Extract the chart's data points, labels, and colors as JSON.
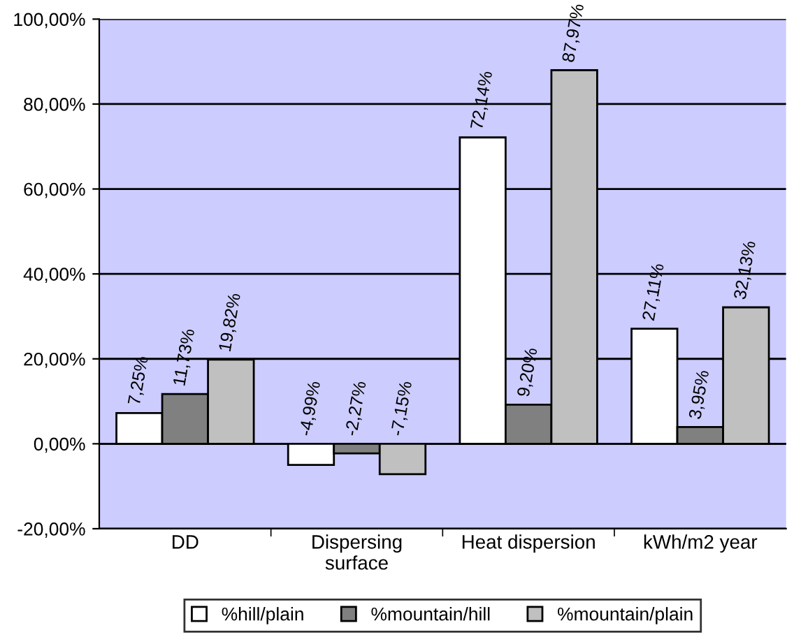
{
  "chart_data": {
    "type": "bar",
    "categories": [
      "DD",
      "Dispersing\nsurface",
      "Heat dispersion",
      "kWh/m2 year"
    ],
    "series": [
      {
        "name": "%hill/plain",
        "color": "#ffffff",
        "values": [
          7.25,
          -4.99,
          72.14,
          27.11
        ],
        "value_labels": [
          "7,25%",
          "-4,99%",
          "72,14%",
          "27,11%"
        ]
      },
      {
        "name": "%mountain/hill",
        "color": "#808080",
        "values": [
          11.73,
          -2.27,
          9.2,
          3.95
        ],
        "value_labels": [
          "11,73%",
          "-2,27%",
          "9,20%",
          "3,95%"
        ]
      },
      {
        "name": "%mountain/plain",
        "color": "#c0c0c0",
        "values": [
          19.82,
          -7.15,
          87.97,
          32.13
        ],
        "value_labels": [
          "19,82%",
          "-7,15%",
          "87,97%",
          "32,13%"
        ]
      }
    ],
    "ylim": [
      -20,
      100
    ],
    "yticks": [
      {
        "value": -20,
        "label": "-20,00%"
      },
      {
        "value": 0,
        "label": "0,00%"
      },
      {
        "value": 20,
        "label": "20,00%"
      },
      {
        "value": 40,
        "label": "40,00%"
      },
      {
        "value": 60,
        "label": "60,00%"
      },
      {
        "value": 80,
        "label": "80,00%"
      },
      {
        "value": 100,
        "label": "100,00%"
      }
    ],
    "grid": "y",
    "legend": "bottom"
  }
}
